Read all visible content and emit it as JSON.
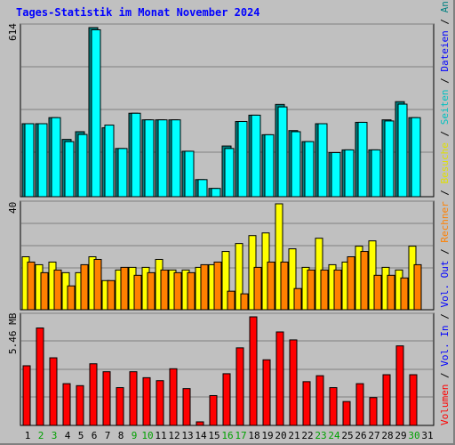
{
  "title": "Tages-Statistik im Monat November 2024",
  "colors": {
    "hits": "#00ffff",
    "hits_back": "#008080",
    "files": "#0000ff",
    "sites": "#ff8000",
    "visits": "#ffff00",
    "kbytes": "#ff0000",
    "weekend": "#00a000",
    "weekday": "#000000"
  },
  "legend": [
    {
      "text": "Volumen",
      "color": "#ff0000"
    },
    {
      "text": " / ",
      "color": "#000000"
    },
    {
      "text": "Vol. In",
      "color": "#0000ff"
    },
    {
      "text": " / ",
      "color": "#000000"
    },
    {
      "text": "Vol. Out",
      "color": "#0000ff"
    },
    {
      "text": " / ",
      "color": "#000000"
    },
    {
      "text": "Rechner",
      "color": "#ff8000"
    },
    {
      "text": " / ",
      "color": "#000000"
    },
    {
      "text": "Besuche",
      "color": "#e0e000"
    },
    {
      "text": " / ",
      "color": "#000000"
    },
    {
      "text": "Seiten",
      "color": "#00c0c0"
    },
    {
      "text": " / ",
      "color": "#000000"
    },
    {
      "text": "Dateien",
      "color": "#0000ff"
    },
    {
      "text": " / ",
      "color": "#000000"
    },
    {
      "text": "Anfragen",
      "color": "#008080"
    }
  ],
  "chart_data": [
    {
      "type": "bar",
      "panel": "top",
      "max_label": "614",
      "ylim": [
        0,
        614
      ],
      "categories": [
        "1",
        "2",
        "3",
        "4",
        "5",
        "6",
        "7",
        "8",
        "9",
        "10",
        "11",
        "12",
        "13",
        "14",
        "15",
        "16",
        "17",
        "18",
        "19",
        "20",
        "21",
        "22",
        "23",
        "24",
        "25",
        "26",
        "27",
        "28",
        "29",
        "30",
        "31"
      ],
      "series": [
        {
          "name": "Anfragen",
          "values": [
            265,
            265,
            287,
            208,
            236,
            614,
            250,
            175,
            303,
            279,
            279,
            279,
            165,
            62,
            30,
            184,
            273,
            296,
            225,
            335,
            240,
            200,
            265,
            160,
            170,
            270,
            170,
            279,
            345,
            287,
            0
          ]
        },
        {
          "name": "Dateien",
          "values": [
            265,
            265,
            287,
            200,
            226,
            606,
            260,
            175,
            303,
            279,
            279,
            279,
            165,
            62,
            30,
            175,
            273,
            296,
            225,
            326,
            236,
            200,
            265,
            160,
            170,
            270,
            170,
            275,
            336,
            287,
            0
          ]
        }
      ]
    },
    {
      "type": "bar",
      "panel": "middle",
      "max_label": "40",
      "ylim": [
        0,
        40
      ],
      "categories": [
        "1",
        "2",
        "3",
        "4",
        "5",
        "6",
        "7",
        "8",
        "9",
        "10",
        "11",
        "12",
        "13",
        "14",
        "15",
        "16",
        "17",
        "18",
        "19",
        "20",
        "21",
        "22",
        "23",
        "24",
        "25",
        "26",
        "27",
        "28",
        "29",
        "30",
        "31"
      ],
      "series": [
        {
          "name": "Besuche",
          "values": [
            20,
            17,
            18,
            14,
            14,
            20,
            11,
            15,
            16,
            16,
            19,
            15,
            15,
            16,
            17,
            22,
            25,
            28,
            29,
            40,
            23,
            16,
            27,
            17,
            18,
            24,
            26,
            16,
            15,
            24,
            0
          ]
        },
        {
          "name": "Rechner",
          "values": [
            18,
            14,
            15,
            9,
            17,
            19,
            11,
            16,
            13,
            14,
            15,
            14,
            14,
            17,
            18,
            7,
            6,
            16,
            18,
            18,
            8,
            15,
            15,
            15,
            20,
            22,
            13,
            13,
            12,
            17,
            0
          ]
        }
      ]
    },
    {
      "type": "bar",
      "panel": "bottom",
      "max_label": "5.46 MB",
      "ylim": [
        0,
        5.46
      ],
      "categories": [
        "1",
        "2",
        "3",
        "4",
        "5",
        "6",
        "7",
        "8",
        "9",
        "10",
        "11",
        "12",
        "13",
        "14",
        "15",
        "16",
        "17",
        "18",
        "19",
        "20",
        "21",
        "22",
        "23",
        "24",
        "25",
        "26",
        "27",
        "28",
        "29",
        "30",
        "31"
      ],
      "series": [
        {
          "name": "Volumen",
          "values": [
            3.0,
            4.9,
            3.4,
            2.1,
            2.0,
            3.1,
            2.7,
            1.9,
            2.7,
            2.4,
            2.25,
            2.85,
            1.85,
            0.18,
            1.5,
            2.6,
            3.9,
            5.46,
            3.3,
            4.7,
            4.3,
            2.2,
            2.5,
            1.9,
            1.2,
            2.1,
            1.4,
            2.55,
            4.0,
            2.55,
            0
          ]
        }
      ]
    }
  ]
}
